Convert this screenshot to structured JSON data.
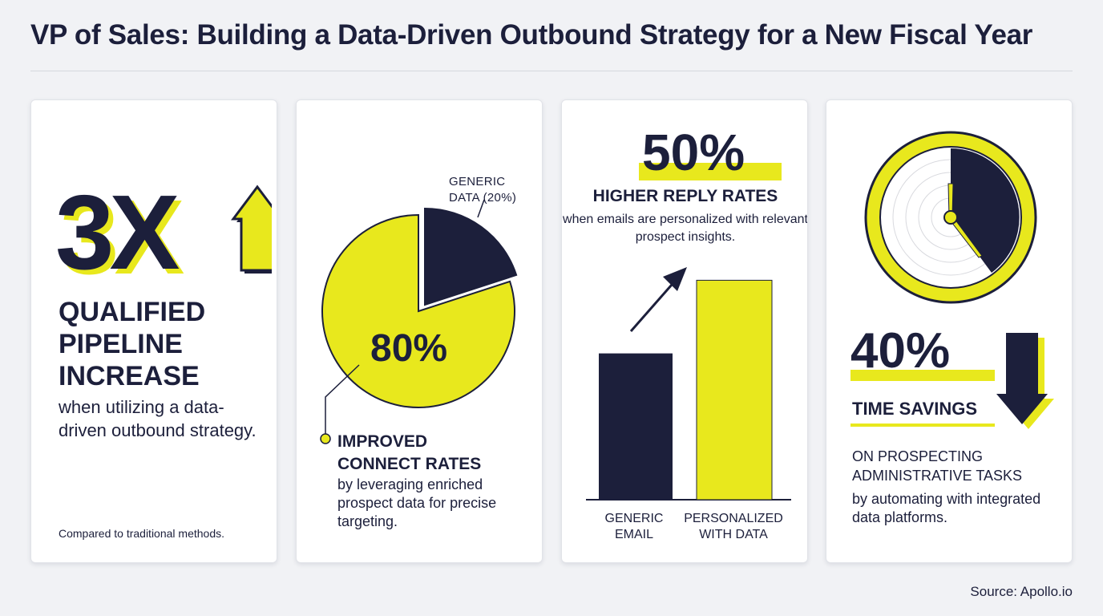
{
  "title": "VP of Sales: Building a Data-Driven Outbound Strategy for a New Fiscal Year",
  "colors": {
    "navy": "#1c1f3b",
    "yellow": "#e8e81d",
    "background": "#f1f2f5"
  },
  "cards": {
    "pipeline": {
      "stat": "3X",
      "icon": "up-arrow-icon",
      "heading_lines": [
        "QUALIFIED",
        "PIPELINE",
        "INCREASE"
      ],
      "body": "when utilizing a data-driven outbound strategy.",
      "footnote": "Compared to traditional methods."
    },
    "connect": {
      "generic_label_lines": [
        "GENERIC",
        "DATA (20%)"
      ],
      "stat": "80%",
      "heading_lines": [
        "IMPROVED",
        "CONNECT RATES"
      ],
      "body": "by leveraging enriched prospect data for precise targeting."
    },
    "reply": {
      "stat": "50%",
      "heading": "HIGHER REPLY RATES",
      "body": "when emails are personalized with relevant prospect insights."
    },
    "time": {
      "icon": "clock-icon",
      "stat": "40%",
      "heading": "TIME SAVINGS",
      "sub_lines": [
        "ON PROSPECTING",
        "ADMINISTRATIVE TASKS"
      ],
      "body": "by automating with integrated data platforms.",
      "arrow_icon": "down-arrow-icon"
    }
  },
  "chart_data": [
    {
      "type": "pie",
      "categories": [
        "GENERIC DATA (20%)",
        ""
      ],
      "values": [
        20,
        80
      ]
    },
    {
      "type": "bar",
      "categories": [
        "GENERIC EMAIL",
        "PERSONALIZED WITH DATA"
      ],
      "values": [
        100,
        150
      ]
    }
  ],
  "source": "Source: Apollo.io"
}
